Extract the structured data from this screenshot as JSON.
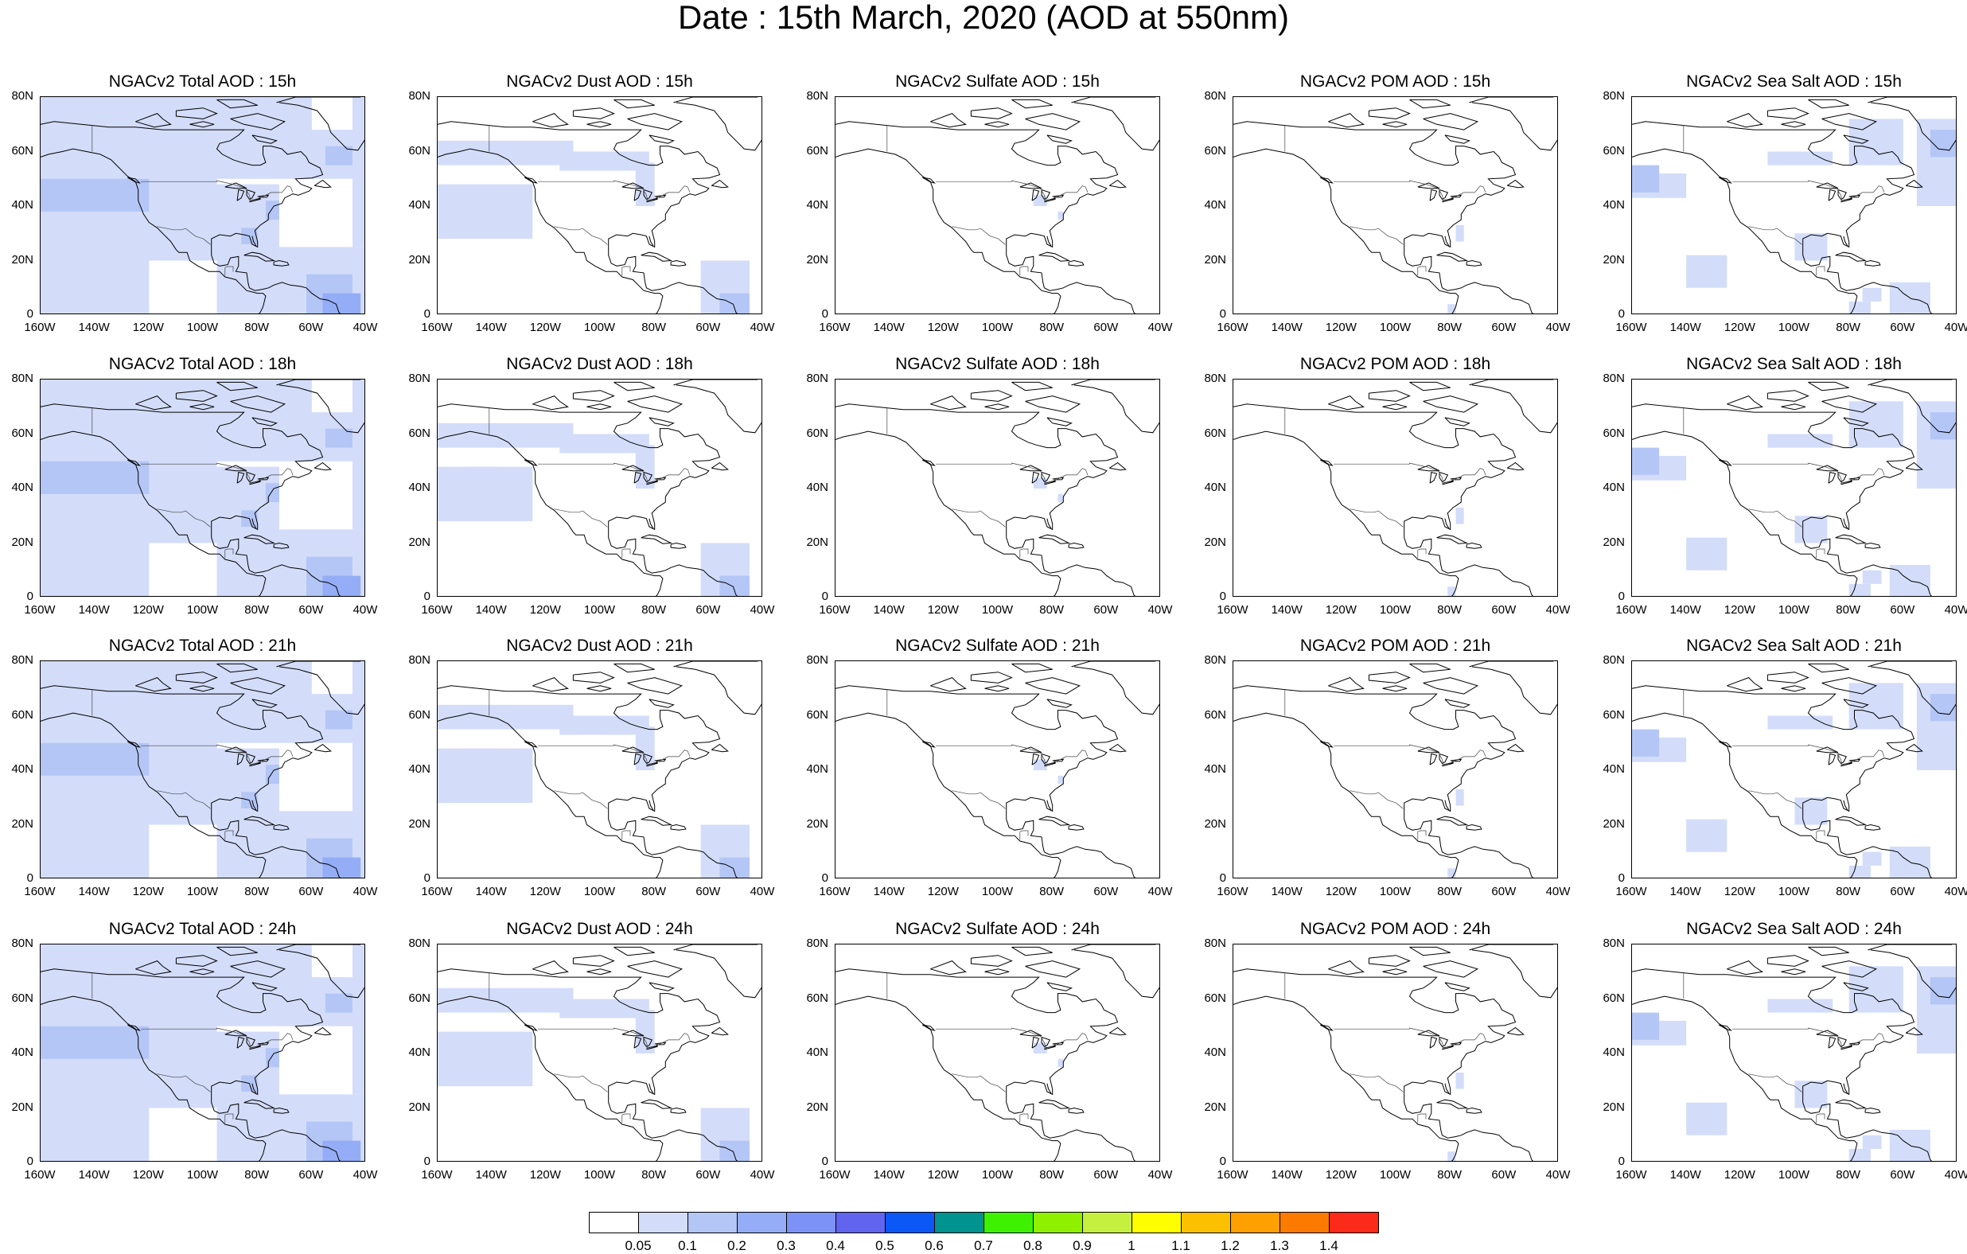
{
  "title": "Date : 15th March, 2020 (AOD at 550nm)",
  "lat_ticks": [
    "80N",
    "60N",
    "40N",
    "20N",
    "0"
  ],
  "lon_ticks": [
    "160W",
    "140W",
    "120W",
    "100W",
    "80W",
    "60W",
    "40W"
  ],
  "panels": [
    {
      "title": "NGACv2 Total AOD : 15h",
      "species": "total",
      "hour": "15h"
    },
    {
      "title": "NGACv2 Dust AOD : 15h",
      "species": "dust",
      "hour": "15h"
    },
    {
      "title": "NGACv2 Sulfate AOD : 15h",
      "species": "sulfate",
      "hour": "15h"
    },
    {
      "title": "NGACv2 POM AOD : 15h",
      "species": "pom",
      "hour": "15h"
    },
    {
      "title": "NGACv2 Sea Salt AOD : 15h",
      "species": "seasalt",
      "hour": "15h"
    },
    {
      "title": "NGACv2 Total AOD : 18h",
      "species": "total",
      "hour": "18h"
    },
    {
      "title": "NGACv2 Dust AOD : 18h",
      "species": "dust",
      "hour": "18h"
    },
    {
      "title": "NGACv2 Sulfate AOD : 18h",
      "species": "sulfate",
      "hour": "18h"
    },
    {
      "title": "NGACv2 POM AOD : 18h",
      "species": "pom",
      "hour": "18h"
    },
    {
      "title": "NGACv2 Sea Salt AOD : 18h",
      "species": "seasalt",
      "hour": "18h"
    },
    {
      "title": "NGACv2 Total AOD : 21h",
      "species": "total",
      "hour": "21h"
    },
    {
      "title": "NGACv2 Dust AOD : 21h",
      "species": "dust",
      "hour": "21h"
    },
    {
      "title": "NGACv2 Sulfate AOD : 21h",
      "species": "sulfate",
      "hour": "21h"
    },
    {
      "title": "NGACv2 POM AOD : 21h",
      "species": "pom",
      "hour": "21h"
    },
    {
      "title": "NGACv2 Sea Salt AOD : 21h",
      "species": "seasalt",
      "hour": "21h"
    },
    {
      "title": "NGACv2 Total AOD : 24h",
      "species": "total",
      "hour": "24h"
    },
    {
      "title": "NGACv2 Dust AOD : 24h",
      "species": "dust",
      "hour": "24h"
    },
    {
      "title": "NGACv2 Sulfate AOD : 24h",
      "species": "sulfate",
      "hour": "24h"
    },
    {
      "title": "NGACv2 POM AOD : 24h",
      "species": "pom",
      "hour": "24h"
    },
    {
      "title": "NGACv2 Sea Salt  AOD : 24h",
      "species": "seasalt",
      "hour": "24h"
    }
  ],
  "colorbar": {
    "labels": [
      "0.05",
      "0.1",
      "0.2",
      "0.3",
      "0.4",
      "0.5",
      "0.6",
      "0.7",
      "0.8",
      "0.9",
      "1",
      "1.1",
      "1.2",
      "1.3",
      "1.4"
    ],
    "colors": [
      "#ffffff",
      "#d3ddfa",
      "#b4c6f6",
      "#94adf6",
      "#7d92f6",
      "#6064ee",
      "#0b58f6",
      "#00938f",
      "#3df100",
      "#8ff000",
      "#c6f040",
      "#fefe00",
      "#fdc000",
      "#fda000",
      "#fc7a00",
      "#fc2a1a"
    ]
  }
}
